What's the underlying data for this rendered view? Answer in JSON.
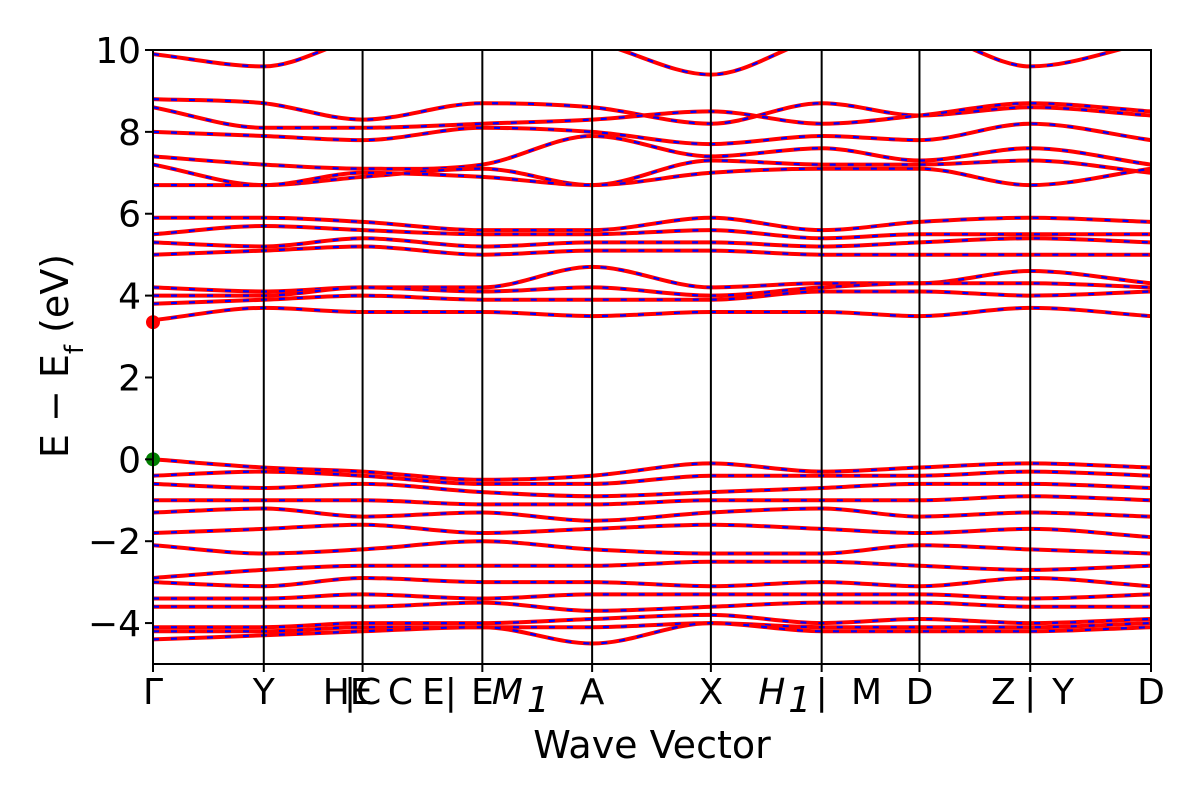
{
  "chart_data": {
    "type": "line",
    "xlabel": "Wave Vector",
    "ylabel": "E − E_f (eV)",
    "ylabel_main": "E − E",
    "ylabel_sub": "f",
    "ylabel_unit": " (eV)",
    "ylim": [
      -5,
      10
    ],
    "xlim": [
      0,
      1
    ],
    "y_ticks": [
      -4,
      -2,
      0,
      2,
      4,
      6,
      8,
      10
    ],
    "y_tick_labels": [
      "−4",
      "−2",
      "0",
      "2",
      "4",
      "6",
      "8",
      "10"
    ],
    "grid": false,
    "kpoint_lines": [
      0.111,
      0.21,
      0.33,
      0.44,
      0.559,
      0.67,
      0.768,
      0.879
    ],
    "kpoint_labels": [
      {
        "x": 0.0,
        "text": "Γ"
      },
      {
        "x": 0.111,
        "text": "Y"
      },
      {
        "x": 0.195,
        "text": "HE"
      },
      {
        "x": 0.21,
        "text": "|C"
      },
      {
        "x": 0.248,
        "text": "C"
      },
      {
        "x": 0.287,
        "text": "E|"
      },
      {
        "x": 0.33,
        "text": "E"
      },
      {
        "x": 0.355,
        "text": "M"
      },
      {
        "x": 0.386,
        "text": "1"
      },
      {
        "x": 0.44,
        "text": "A"
      },
      {
        "x": 0.559,
        "text": "X"
      },
      {
        "x": 0.62,
        "text": "H"
      },
      {
        "x": 0.648,
        "text": "1"
      },
      {
        "x": 0.67,
        "text": "|"
      },
      {
        "x": 0.715,
        "text": "M"
      },
      {
        "x": 0.768,
        "text": "D"
      },
      {
        "x": 0.852,
        "text": "Z"
      },
      {
        "x": 0.879,
        "text": "|"
      },
      {
        "x": 0.912,
        "text": "Y"
      },
      {
        "x": 1.0,
        "text": "D"
      }
    ],
    "series": [
      {
        "color": "#ff0000",
        "style": "solid"
      },
      {
        "color": "#0000ff",
        "style": "dashed"
      }
    ],
    "bands": [
      {
        "x": [
          0,
          0.111,
          0.21,
          0.33,
          0.44,
          0.559,
          0.67,
          0.768,
          0.879,
          1
        ],
        "y": [
          9.9,
          9.6,
          10.3,
          10.5,
          10.2,
          9.4,
          10.3,
          10.4,
          9.6,
          10.2
        ]
      },
      {
        "x": [
          0,
          0.111,
          0.21,
          0.33,
          0.44,
          0.559,
          0.67,
          0.768,
          0.879,
          1
        ],
        "y": [
          8.8,
          8.7,
          8.3,
          8.7,
          8.6,
          8.2,
          8.7,
          8.4,
          8.6,
          8.4
        ]
      },
      {
        "x": [
          0,
          0.111,
          0.21,
          0.33,
          0.44,
          0.559,
          0.67,
          0.768,
          0.879,
          1
        ],
        "y": [
          8.6,
          8.1,
          8.1,
          8.2,
          8.3,
          8.5,
          8.2,
          8.4,
          8.7,
          8.5
        ]
      },
      {
        "x": [
          0,
          0.111,
          0.21,
          0.33,
          0.44,
          0.559,
          0.67,
          0.768,
          0.879,
          1
        ],
        "y": [
          8.0,
          7.9,
          7.8,
          8.1,
          8.0,
          7.7,
          7.9,
          7.8,
          8.2,
          7.8
        ]
      },
      {
        "x": [
          0,
          0.111,
          0.21,
          0.33,
          0.44,
          0.559,
          0.67,
          0.768,
          0.879,
          1
        ],
        "y": [
          7.4,
          7.2,
          7.1,
          7.2,
          7.9,
          7.4,
          7.6,
          7.3,
          7.6,
          7.2
        ]
      },
      {
        "x": [
          0,
          0.111,
          0.21,
          0.33,
          0.44,
          0.559,
          0.67,
          0.768,
          0.879,
          1
        ],
        "y": [
          7.2,
          6.7,
          6.9,
          7.1,
          6.7,
          7.3,
          7.2,
          7.2,
          7.3,
          7.0
        ]
      },
      {
        "x": [
          0,
          0.111,
          0.21,
          0.33,
          0.44,
          0.559,
          0.67,
          0.768,
          0.879,
          1
        ],
        "y": [
          6.7,
          6.7,
          7.0,
          6.9,
          6.7,
          7.0,
          7.1,
          7.1,
          6.7,
          7.1
        ]
      },
      {
        "x": [
          0,
          0.111,
          0.21,
          0.33,
          0.44,
          0.559,
          0.67,
          0.768,
          0.879,
          1
        ],
        "y": [
          5.9,
          5.9,
          5.8,
          5.6,
          5.6,
          5.9,
          5.6,
          5.8,
          5.9,
          5.8
        ]
      },
      {
        "x": [
          0,
          0.111,
          0.21,
          0.33,
          0.44,
          0.559,
          0.67,
          0.768,
          0.879,
          1
        ],
        "y": [
          5.5,
          5.7,
          5.6,
          5.5,
          5.5,
          5.6,
          5.4,
          5.5,
          5.5,
          5.5
        ]
      },
      {
        "x": [
          0,
          0.111,
          0.21,
          0.33,
          0.44,
          0.559,
          0.67,
          0.768,
          0.879,
          1
        ],
        "y": [
          5.3,
          5.2,
          5.4,
          5.2,
          5.3,
          5.3,
          5.2,
          5.3,
          5.4,
          5.3
        ]
      },
      {
        "x": [
          0,
          0.111,
          0.21,
          0.33,
          0.44,
          0.559,
          0.67,
          0.768,
          0.879,
          1
        ],
        "y": [
          5.0,
          5.1,
          5.2,
          5.0,
          5.1,
          5.1,
          5.0,
          5.0,
          5.0,
          5.0
        ]
      },
      {
        "x": [
          0,
          0.111,
          0.21,
          0.33,
          0.44,
          0.559,
          0.67,
          0.768,
          0.879,
          1
        ],
        "y": [
          4.2,
          4.1,
          4.2,
          4.2,
          4.7,
          4.2,
          4.3,
          4.3,
          4.6,
          4.3
        ]
      },
      {
        "x": [
          0,
          0.111,
          0.21,
          0.33,
          0.44,
          0.559,
          0.67,
          0.768,
          0.879,
          1
        ],
        "y": [
          4.0,
          4.0,
          4.2,
          4.1,
          4.2,
          4.0,
          4.2,
          4.3,
          4.3,
          4.2
        ]
      },
      {
        "x": [
          0,
          0.111,
          0.21,
          0.33,
          0.44,
          0.559,
          0.67,
          0.768,
          0.879,
          1
        ],
        "y": [
          3.8,
          3.9,
          4.0,
          3.9,
          3.9,
          3.9,
          4.1,
          4.1,
          4.0,
          4.1
        ]
      },
      {
        "x": [
          0,
          0.111,
          0.21,
          0.33,
          0.44,
          0.559,
          0.67,
          0.768,
          0.879,
          1
        ],
        "y": [
          3.4,
          3.7,
          3.6,
          3.6,
          3.5,
          3.6,
          3.6,
          3.5,
          3.7,
          3.5
        ]
      },
      {
        "x": [
          0,
          0.111,
          0.21,
          0.33,
          0.44,
          0.559,
          0.67,
          0.768,
          0.879,
          1
        ],
        "y": [
          0.0,
          -0.2,
          -0.3,
          -0.5,
          -0.4,
          -0.1,
          -0.3,
          -0.2,
          -0.1,
          -0.2
        ]
      },
      {
        "x": [
          0,
          0.111,
          0.21,
          0.33,
          0.44,
          0.559,
          0.67,
          0.768,
          0.879,
          1
        ],
        "y": [
          -0.4,
          -0.3,
          -0.4,
          -0.6,
          -0.6,
          -0.4,
          -0.4,
          -0.4,
          -0.3,
          -0.4
        ]
      },
      {
        "x": [
          0,
          0.111,
          0.21,
          0.33,
          0.44,
          0.559,
          0.67,
          0.768,
          0.879,
          1
        ],
        "y": [
          -0.6,
          -0.7,
          -0.6,
          -0.8,
          -0.9,
          -0.8,
          -0.7,
          -0.6,
          -0.6,
          -0.7
        ]
      },
      {
        "x": [
          0,
          0.111,
          0.21,
          0.33,
          0.44,
          0.559,
          0.67,
          0.768,
          0.879,
          1
        ],
        "y": [
          -1.0,
          -1.0,
          -1.0,
          -1.1,
          -1.1,
          -1.0,
          -1.0,
          -1.0,
          -0.9,
          -1.0
        ]
      },
      {
        "x": [
          0,
          0.111,
          0.21,
          0.33,
          0.44,
          0.559,
          0.67,
          0.768,
          0.879,
          1
        ],
        "y": [
          -1.3,
          -1.2,
          -1.4,
          -1.3,
          -1.5,
          -1.3,
          -1.2,
          -1.4,
          -1.3,
          -1.4
        ]
      },
      {
        "x": [
          0,
          0.111,
          0.21,
          0.33,
          0.44,
          0.559,
          0.67,
          0.768,
          0.879,
          1
        ],
        "y": [
          -1.8,
          -1.7,
          -1.6,
          -1.8,
          -1.7,
          -1.6,
          -1.7,
          -1.8,
          -1.7,
          -1.9
        ]
      },
      {
        "x": [
          0,
          0.111,
          0.21,
          0.33,
          0.44,
          0.559,
          0.67,
          0.768,
          0.879,
          1
        ],
        "y": [
          -2.1,
          -2.3,
          -2.2,
          -2.0,
          -2.2,
          -2.3,
          -2.3,
          -2.1,
          -2.2,
          -2.3
        ]
      },
      {
        "x": [
          0,
          0.111,
          0.21,
          0.33,
          0.44,
          0.559,
          0.67,
          0.768,
          0.879,
          1
        ],
        "y": [
          -2.9,
          -2.7,
          -2.6,
          -2.6,
          -2.6,
          -2.5,
          -2.5,
          -2.6,
          -2.7,
          -2.6
        ]
      },
      {
        "x": [
          0,
          0.111,
          0.21,
          0.33,
          0.44,
          0.559,
          0.67,
          0.768,
          0.879,
          1
        ],
        "y": [
          -3.0,
          -3.1,
          -2.9,
          -3.0,
          -3.0,
          -3.1,
          -3.0,
          -3.1,
          -2.9,
          -3.1
        ]
      },
      {
        "x": [
          0,
          0.111,
          0.21,
          0.33,
          0.44,
          0.559,
          0.67,
          0.768,
          0.879,
          1
        ],
        "y": [
          -3.4,
          -3.4,
          -3.3,
          -3.4,
          -3.3,
          -3.3,
          -3.3,
          -3.3,
          -3.4,
          -3.3
        ]
      },
      {
        "x": [
          0,
          0.111,
          0.21,
          0.33,
          0.44,
          0.559,
          0.67,
          0.768,
          0.879,
          1
        ],
        "y": [
          -3.6,
          -3.6,
          -3.6,
          -3.5,
          -3.7,
          -3.6,
          -3.5,
          -3.5,
          -3.6,
          -3.6
        ]
      },
      {
        "x": [
          0,
          0.111,
          0.21,
          0.33,
          0.44,
          0.559,
          0.67,
          0.768,
          0.879,
          1
        ],
        "y": [
          -4.1,
          -4.1,
          -4.0,
          -4.0,
          -3.9,
          -3.8,
          -4.0,
          -3.9,
          -4.0,
          -3.9
        ]
      },
      {
        "x": [
          0,
          0.111,
          0.21,
          0.33,
          0.44,
          0.559,
          0.67,
          0.768,
          0.879,
          1
        ],
        "y": [
          -4.2,
          -4.2,
          -4.1,
          -4.1,
          -4.1,
          -4.0,
          -4.1,
          -4.1,
          -4.1,
          -4.0
        ]
      },
      {
        "x": [
          0,
          0.111,
          0.21,
          0.33,
          0.44,
          0.559,
          0.67,
          0.768,
          0.879,
          1
        ],
        "y": [
          -4.4,
          -4.3,
          -4.2,
          -4.1,
          -4.5,
          -4.0,
          -4.2,
          -4.2,
          -4.2,
          -4.1
        ]
      }
    ],
    "extremum_markers": [
      {
        "x": 0.0,
        "y": 3.35,
        "color": "#ff0000"
      },
      {
        "x": 0.0,
        "y": 0.0,
        "color": "#008000"
      }
    ]
  }
}
